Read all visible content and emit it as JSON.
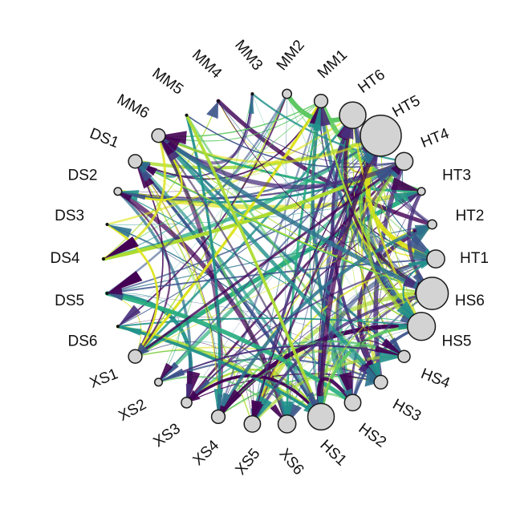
{
  "diagram": {
    "type": "chord-network",
    "nodes": [
      {
        "id": "HT1",
        "size": 9
      },
      {
        "id": "HT2",
        "size": 3
      },
      {
        "id": "HT3",
        "size": 2
      },
      {
        "id": "HT4",
        "size": 9
      },
      {
        "id": "HT5",
        "size": 25
      },
      {
        "id": "HT6",
        "size": 15
      },
      {
        "id": "MM1",
        "size": 6
      },
      {
        "id": "MM2",
        "size": 3
      },
      {
        "id": "MM3",
        "size": 1
      },
      {
        "id": "MM4",
        "size": 1
      },
      {
        "id": "MM5",
        "size": 1
      },
      {
        "id": "MM6",
        "size": 6
      },
      {
        "id": "DS1",
        "size": 6
      },
      {
        "id": "DS2",
        "size": 2
      },
      {
        "id": "DS3",
        "size": 1
      },
      {
        "id": "DS4",
        "size": 1
      },
      {
        "id": "DS5",
        "size": 1
      },
      {
        "id": "DS6",
        "size": 1
      },
      {
        "id": "XS1",
        "size": 6
      },
      {
        "id": "XS2",
        "size": 2
      },
      {
        "id": "XS3",
        "size": 4
      },
      {
        "id": "XS4",
        "size": 6
      },
      {
        "id": "XS5",
        "size": 8
      },
      {
        "id": "XS6",
        "size": 9
      },
      {
        "id": "HS1",
        "size": 15
      },
      {
        "id": "HS2",
        "size": 8
      },
      {
        "id": "HS3",
        "size": 6
      },
      {
        "id": "HS4",
        "size": 5
      },
      {
        "id": "HS5",
        "size": 16
      },
      {
        "id": "HS6",
        "size": 19
      }
    ],
    "palette": [
      "#440154",
      "#472d7b",
      "#3b528b",
      "#2c728e",
      "#21918c",
      "#28ae80",
      "#5ec962",
      "#addc30",
      "#dde318"
    ]
  }
}
